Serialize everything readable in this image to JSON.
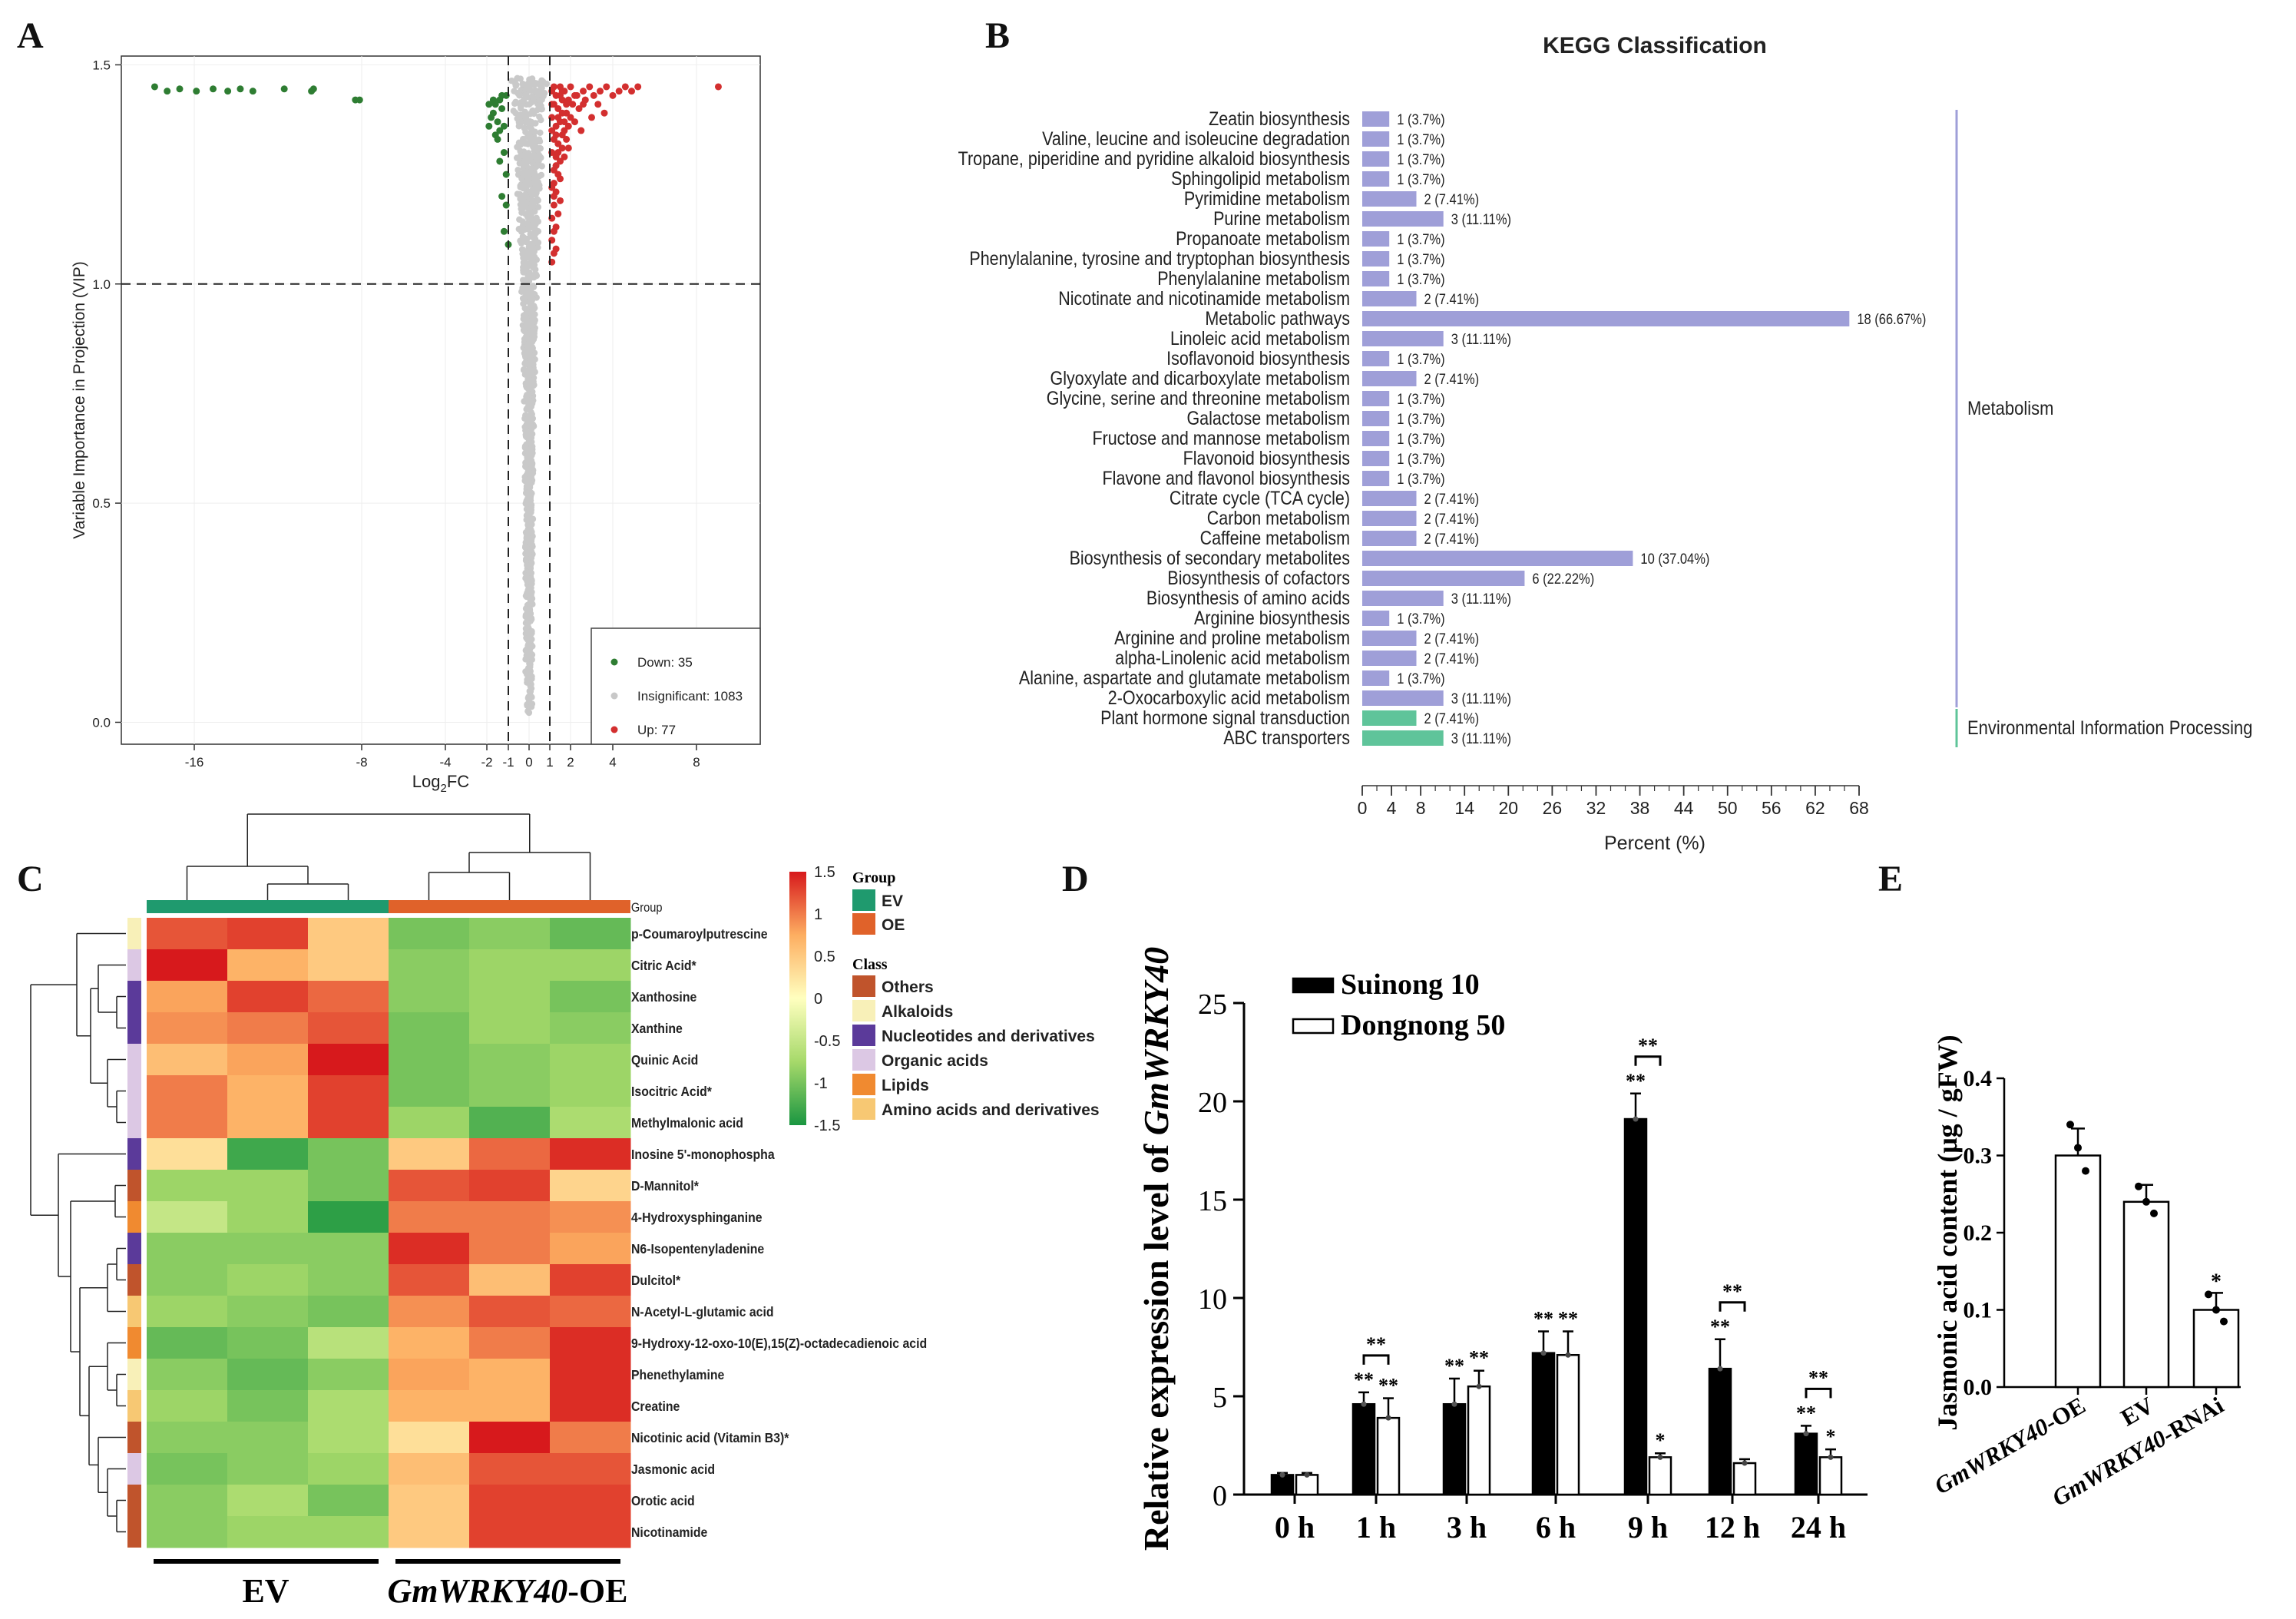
{
  "panels": {
    "A": "A",
    "B": "B",
    "C": "C",
    "D": "D",
    "E": "E"
  },
  "chart_data": [
    {
      "id": "A",
      "type": "scatter",
      "title": "",
      "xlabel": "Log2FC",
      "xlabel_base": "Log",
      "xlabel_sub": "2",
      "xlabel_rest": "FC",
      "ylabel": "Variable Importance in Projection (VIP)",
      "xlim": [
        -19.5,
        11.5
      ],
      "ylim": [
        -0.05,
        1.52
      ],
      "xticks": [
        -16,
        -8,
        -4,
        -2,
        -1,
        0,
        1,
        2,
        4,
        8
      ],
      "xtick_labels": [
        "-16",
        "-8",
        "-4",
        "-2",
        "-1",
        "0",
        "1",
        "2",
        "4",
        "8"
      ],
      "yticks": [
        0.0,
        0.5,
        1.0,
        1.5
      ],
      "ytick_labels": [
        "0.0",
        "0.5",
        "1.0",
        "1.5"
      ],
      "vlines": [
        -1,
        1
      ],
      "hline": 1.0,
      "legend": {
        "position": "bottom-right",
        "entries": [
          {
            "label": "Down: 35",
            "color": "#2e7d32"
          },
          {
            "label": "Insignificant: 1083",
            "color": "#c8c8c8"
          },
          {
            "label": "Up: 77",
            "color": "#d32f2f"
          }
        ]
      },
      "down_points": [
        [
          -17.9,
          1.45
        ],
        [
          -17.3,
          1.44
        ],
        [
          -16.7,
          1.445
        ],
        [
          -15.9,
          1.44
        ],
        [
          -15.1,
          1.445
        ],
        [
          -14.4,
          1.44
        ],
        [
          -13.8,
          1.445
        ],
        [
          -13.2,
          1.44
        ],
        [
          -11.7,
          1.445
        ],
        [
          -10.4,
          1.44
        ],
        [
          -10.3,
          1.445
        ],
        [
          -8.3,
          1.42
        ],
        [
          -8.1,
          1.42
        ],
        [
          -1.9,
          1.41
        ],
        [
          -1.7,
          1.39
        ],
        [
          -1.5,
          1.37
        ],
        [
          -1.4,
          1.42
        ],
        [
          -1.6,
          1.34
        ],
        [
          -1.2,
          1.36
        ],
        [
          -1.3,
          1.4
        ],
        [
          -1.8,
          1.38
        ],
        [
          -1.1,
          1.43
        ],
        [
          -1.5,
          1.33
        ],
        [
          -1.2,
          1.3
        ],
        [
          -1.4,
          1.28
        ],
        [
          -1.1,
          1.25
        ],
        [
          -1.3,
          1.2
        ],
        [
          -1.2,
          1.12
        ],
        [
          -1.1,
          1.18
        ],
        [
          -1.3,
          1.43
        ],
        [
          -1.6,
          1.41
        ],
        [
          -1.9,
          1.36
        ],
        [
          -1.4,
          1.35
        ],
        [
          -1.7,
          1.42
        ],
        [
          -1.0,
          1.09
        ]
      ],
      "up_points": [
        [
          1.1,
          1.44
        ],
        [
          1.3,
          1.43
        ],
        [
          1.5,
          1.45
        ],
        [
          1.7,
          1.44
        ],
        [
          2.0,
          1.45
        ],
        [
          2.3,
          1.43
        ],
        [
          2.6,
          1.44
        ],
        [
          2.9,
          1.45
        ],
        [
          3.1,
          1.43
        ],
        [
          3.4,
          1.44
        ],
        [
          3.7,
          1.45
        ],
        [
          4.0,
          1.43
        ],
        [
          4.3,
          1.44
        ],
        [
          4.6,
          1.45
        ],
        [
          4.9,
          1.44
        ],
        [
          5.2,
          1.45
        ],
        [
          1.2,
          1.41
        ],
        [
          1.4,
          1.4
        ],
        [
          1.6,
          1.42
        ],
        [
          1.8,
          1.39
        ],
        [
          2.1,
          1.41
        ],
        [
          2.4,
          1.4
        ],
        [
          2.7,
          1.42
        ],
        [
          3.0,
          1.38
        ],
        [
          3.3,
          1.41
        ],
        [
          3.6,
          1.39
        ],
        [
          1.1,
          1.38
        ],
        [
          1.3,
          1.36
        ],
        [
          1.5,
          1.37
        ],
        [
          1.7,
          1.35
        ],
        [
          1.9,
          1.36
        ],
        [
          2.2,
          1.37
        ],
        [
          2.5,
          1.35
        ],
        [
          1.2,
          1.33
        ],
        [
          1.4,
          1.32
        ],
        [
          1.6,
          1.31
        ],
        [
          1.8,
          1.33
        ],
        [
          1.1,
          1.3
        ],
        [
          1.3,
          1.29
        ],
        [
          1.5,
          1.28
        ],
        [
          1.2,
          1.26
        ],
        [
          1.4,
          1.25
        ],
        [
          1.1,
          1.22
        ],
        [
          1.3,
          1.21
        ],
        [
          1.2,
          1.18
        ],
        [
          1.1,
          1.15
        ],
        [
          1.3,
          1.13
        ],
        [
          1.1,
          1.1
        ],
        [
          1.2,
          1.07
        ],
        [
          1.1,
          1.05
        ],
        [
          1.5,
          1.43
        ],
        [
          1.9,
          1.42
        ],
        [
          2.2,
          1.43
        ],
        [
          1.6,
          1.44
        ],
        [
          1.2,
          1.45
        ],
        [
          1.8,
          1.41
        ],
        [
          2.6,
          1.41
        ],
        [
          1.4,
          1.38
        ],
        [
          1.7,
          1.37
        ],
        [
          2.0,
          1.38
        ],
        [
          1.3,
          1.34
        ],
        [
          1.6,
          1.34
        ],
        [
          1.9,
          1.31
        ],
        [
          1.5,
          1.24
        ],
        [
          1.2,
          1.2
        ],
        [
          1.4,
          1.16
        ],
        [
          1.2,
          1.12
        ],
        [
          1.3,
          1.27
        ],
        [
          1.1,
          1.35
        ],
        [
          1.7,
          1.29
        ],
        [
          1.5,
          1.19
        ],
        [
          1.3,
          1.08
        ],
        [
          1.2,
          1.23
        ],
        [
          1.4,
          1.3
        ],
        [
          9.2,
          1.45
        ],
        [
          1.6,
          1.39
        ],
        [
          1.1,
          1.41
        ]
      ],
      "insignificant_band": {
        "x_min": -1.0,
        "x_max": 1.0,
        "y_min": 0.02,
        "y_max": 1.47
      }
    },
    {
      "id": "B",
      "type": "bar",
      "orientation": "horizontal",
      "title": "KEGG Classification",
      "xlabel": "Percent (%)",
      "xlim": [
        0,
        68
      ],
      "xticks": [
        0,
        4,
        8,
        14,
        20,
        26,
        32,
        38,
        44,
        50,
        56,
        62,
        68
      ],
      "xtick_labels": [
        "0",
        "4",
        "8",
        "14",
        "20",
        "26",
        "32",
        "38",
        "44",
        "50",
        "56",
        "62",
        "68"
      ],
      "categories": [
        "Zeatin biosynthesis",
        "Valine, leucine and isoleucine degradation",
        "Tropane, piperidine and pyridine alkaloid biosynthesis",
        "Sphingolipid metabolism",
        "Pyrimidine metabolism",
        "Purine metabolism",
        "Propanoate metabolism",
        "Phenylalanine, tyrosine and tryptophan biosynthesis",
        "Phenylalanine metabolism",
        "Nicotinate and nicotinamide metabolism",
        "Metabolic pathways",
        "Linoleic acid metabolism",
        "Isoflavonoid biosynthesis",
        "Glyoxylate and dicarboxylate metabolism",
        "Glycine, serine and threonine metabolism",
        "Galactose metabolism",
        "Fructose and mannose metabolism",
        "Flavonoid biosynthesis",
        "Flavone and flavonol biosynthesis",
        "Citrate cycle (TCA cycle)",
        "Carbon metabolism",
        "Caffeine metabolism",
        "Biosynthesis of secondary metabolites",
        "Biosynthesis of cofactors",
        "Biosynthesis of amino acids",
        "Arginine biosynthesis",
        "Arginine and proline metabolism",
        "alpha-Linolenic acid metabolism",
        "Alanine, aspartate and glutamate metabolism",
        "2-Oxocarboxylic acid metabolism",
        "Plant hormone signal transduction",
        "ABC transporters"
      ],
      "values": [
        3.7,
        3.7,
        3.7,
        3.7,
        7.41,
        11.11,
        3.7,
        3.7,
        3.7,
        7.41,
        66.67,
        11.11,
        3.7,
        7.41,
        3.7,
        3.7,
        3.7,
        3.7,
        3.7,
        7.41,
        7.41,
        7.41,
        37.04,
        22.22,
        11.11,
        3.7,
        7.41,
        7.41,
        3.7,
        11.11,
        7.41,
        11.11
      ],
      "data_labels": [
        "1 (3.7%)",
        "1 (3.7%)",
        "1 (3.7%)",
        "1 (3.7%)",
        "2 (7.41%)",
        "3 (11.11%)",
        "1 (3.7%)",
        "1 (3.7%)",
        "1 (3.7%)",
        "2 (7.41%)",
        "18 (66.67%)",
        "3 (11.11%)",
        "1 (3.7%)",
        "2 (7.41%)",
        "1 (3.7%)",
        "1 (3.7%)",
        "1 (3.7%)",
        "1 (3.7%)",
        "1 (3.7%)",
        "2 (7.41%)",
        "2 (7.41%)",
        "2 (7.41%)",
        "10 (37.04%)",
        "6 (22.22%)",
        "3 (11.11%)",
        "1 (3.7%)",
        "2 (7.41%)",
        "2 (7.41%)",
        "1 (3.7%)",
        "3 (11.11%)",
        "2 (7.41%)",
        "3 (11.11%)"
      ],
      "groups": [
        {
          "name": "Metabolism",
          "first": 0,
          "last": 29,
          "color": "#9f9fd8"
        },
        {
          "name": "Environmental Information Processing",
          "first": 30,
          "last": 31,
          "color": "#5fc49a"
        }
      ]
    },
    {
      "id": "C",
      "type": "heatmap",
      "title": "",
      "group_label": "Group",
      "rows": [
        "p-Coumaroylputrescine",
        "Citric Acid*",
        "Xanthosine",
        "Xanthine",
        "Quinic Acid",
        "Isocitric Acid*",
        "Methylmalonic acid",
        "Inosine 5'-monophospha",
        "D-Mannitol*",
        "4-Hydroxysphinganine",
        "N6-Isopentenyladenine",
        "Dulcitol*",
        "N-Acetyl-L-glutamic acid",
        "9-Hydroxy-12-oxo-10(E),15(Z)-octadecadienoic acid",
        "Phenethylamine",
        "Creatine",
        "Nicotinic acid (Vitamin B3)*",
        "Jasmonic acid",
        "Orotic acid",
        "Nicotinamide"
      ],
      "row_classes": [
        "Alkaloids",
        "Organic acids",
        "Nucleotides and derivatives",
        "Nucleotides and derivatives",
        "Organic acids",
        "Organic acids",
        "Organic acids",
        "Nucleotides and derivatives",
        "Others",
        "Lipids",
        "Nucleotides and derivatives",
        "Others",
        "Amino acids and derivatives",
        "Lipids",
        "Alkaloids",
        "Amino acids and derivatives",
        "Others",
        "Organic acids",
        "Others",
        "Others"
      ],
      "column_groups": [
        "EV",
        "EV",
        "EV",
        "OE",
        "OE",
        "OE"
      ],
      "values": [
        [
          1.2,
          1.3,
          0.5,
          -1.0,
          -0.9,
          -1.1
        ],
        [
          1.6,
          0.7,
          0.5,
          -0.9,
          -0.8,
          -0.8
        ],
        [
          0.8,
          1.3,
          1.1,
          -0.9,
          -0.8,
          -1.0
        ],
        [
          0.9,
          1.0,
          1.2,
          -1.0,
          -0.8,
          -0.9
        ],
        [
          0.6,
          0.8,
          1.5,
          -1.0,
          -0.9,
          -0.8
        ],
        [
          1.0,
          0.7,
          1.3,
          -1.0,
          -0.9,
          -0.8
        ],
        [
          1.0,
          0.7,
          1.3,
          -0.8,
          -1.2,
          -0.7
        ],
        [
          0.3,
          -1.3,
          -1.0,
          0.5,
          1.1,
          1.4
        ],
        [
          -0.8,
          -0.8,
          -1.0,
          1.2,
          1.3,
          0.4
        ],
        [
          -0.5,
          -0.8,
          -1.4,
          1.0,
          1.0,
          0.9
        ],
        [
          -0.9,
          -0.9,
          -0.9,
          1.4,
          1.0,
          0.8
        ],
        [
          -0.9,
          -0.8,
          -0.9,
          1.2,
          0.6,
          1.3
        ],
        [
          -0.8,
          -0.9,
          -1.0,
          0.9,
          1.2,
          1.1
        ],
        [
          -1.1,
          -1.0,
          -0.6,
          0.7,
          1.0,
          1.4
        ],
        [
          -0.9,
          -1.1,
          -0.9,
          0.8,
          0.7,
          1.4
        ],
        [
          -0.8,
          -1.0,
          -0.7,
          0.7,
          0.7,
          1.4
        ],
        [
          -0.9,
          -0.9,
          -0.7,
          0.3,
          1.5,
          1.0
        ],
        [
          -1.0,
          -0.9,
          -0.8,
          0.6,
          1.2,
          1.2
        ],
        [
          -0.9,
          -0.7,
          -1.0,
          0.5,
          1.3,
          1.3
        ],
        [
          -0.9,
          -0.8,
          -0.8,
          0.5,
          1.3,
          1.3
        ]
      ],
      "color_scale": {
        "min": -1.5,
        "max": 1.5,
        "ticks": [
          "1.5",
          "1",
          "0.5",
          "0",
          "-0.5",
          "-1",
          "-1.5"
        ],
        "colors": [
          "#1a9641",
          "#a6d96a",
          "#ffffbf",
          "#fdae61",
          "#d7191c"
        ]
      },
      "legend_group_title": "Group",
      "legend_groups": [
        {
          "label": "EV",
          "color": "#1f9a6e"
        },
        {
          "label": "OE",
          "color": "#e0622a"
        }
      ],
      "legend_class_title": "Class",
      "legend_classes": [
        {
          "label": "Others",
          "color": "#c0542c"
        },
        {
          "label": "Alkaloids",
          "color": "#f8f0b8"
        },
        {
          "label": "Nucleotides and derivatives",
          "color": "#5b3a9a"
        },
        {
          "label": "Organic acids",
          "color": "#dcc8e4"
        },
        {
          "label": "Lipids",
          "color": "#f08a30"
        },
        {
          "label": "Amino acids and derivatives",
          "color": "#f7c873"
        }
      ],
      "bottom_labels": [
        {
          "label": "EV",
          "italic": ""
        },
        {
          "label": "-OE",
          "italic": "GmWRKY40"
        }
      ]
    },
    {
      "id": "D",
      "type": "bar",
      "title": "",
      "ylabel_italic": "GmWRKY40",
      "ylabel": "Relative expression level of GmWRKY40",
      "ylabel_prefix": "Relative expression level of ",
      "ylim": [
        0,
        25
      ],
      "yticks": [
        0,
        5,
        10,
        15,
        20,
        25
      ],
      "ytick_labels": [
        "0",
        "5",
        "10",
        "15",
        "20",
        "25"
      ],
      "categories": [
        "0 h",
        "1 h",
        "3 h",
        "6 h",
        "9 h",
        "12 h",
        "24 h"
      ],
      "series": [
        {
          "name": "Suinong 10",
          "color": "#000000",
          "values": [
            1.0,
            4.6,
            4.6,
            7.2,
            19.1,
            6.4,
            3.1
          ],
          "errors": [
            0.1,
            0.6,
            1.3,
            1.1,
            1.3,
            1.5,
            0.4
          ],
          "stars": [
            "",
            "**",
            "**",
            "**",
            "**",
            "**",
            "**"
          ]
        },
        {
          "name": "Dongnong 50",
          "color": "#ffffff",
          "values": [
            1.0,
            3.9,
            5.5,
            7.1,
            1.9,
            1.6,
            1.9
          ],
          "errors": [
            0.1,
            1.0,
            0.8,
            1.2,
            0.2,
            0.2,
            0.4
          ],
          "stars": [
            "",
            "**",
            "**",
            "**",
            "*",
            "",
            "*"
          ]
        }
      ],
      "comparisons": [
        {
          "index": 1,
          "label": "**"
        },
        {
          "index": 4,
          "label": "**"
        },
        {
          "index": 5,
          "label": "**"
        },
        {
          "index": 6,
          "label": "**"
        }
      ]
    },
    {
      "id": "E",
      "type": "bar",
      "title": "",
      "ylabel": "Jasmonic acid content (μg / gFW)",
      "ylim": [
        0,
        0.4
      ],
      "yticks": [
        0.0,
        0.1,
        0.2,
        0.3,
        0.4
      ],
      "ytick_labels": [
        "0.0",
        "0.1",
        "0.2",
        "0.3",
        "0.4"
      ],
      "categories": [
        {
          "italic": "GmWRKY40",
          "rest": "-OE"
        },
        {
          "italic": "",
          "rest": "EV"
        },
        {
          "italic": "GmWRKY40",
          "rest": "-RNAi"
        }
      ],
      "values": [
        0.3,
        0.24,
        0.1
      ],
      "errors": [
        0.035,
        0.022,
        0.022
      ],
      "points": [
        [
          0.34,
          0.31,
          0.28
        ],
        [
          0.26,
          0.24,
          0.225
        ],
        [
          0.12,
          0.1,
          0.085
        ]
      ],
      "stars": [
        "",
        "",
        "*"
      ]
    }
  ]
}
